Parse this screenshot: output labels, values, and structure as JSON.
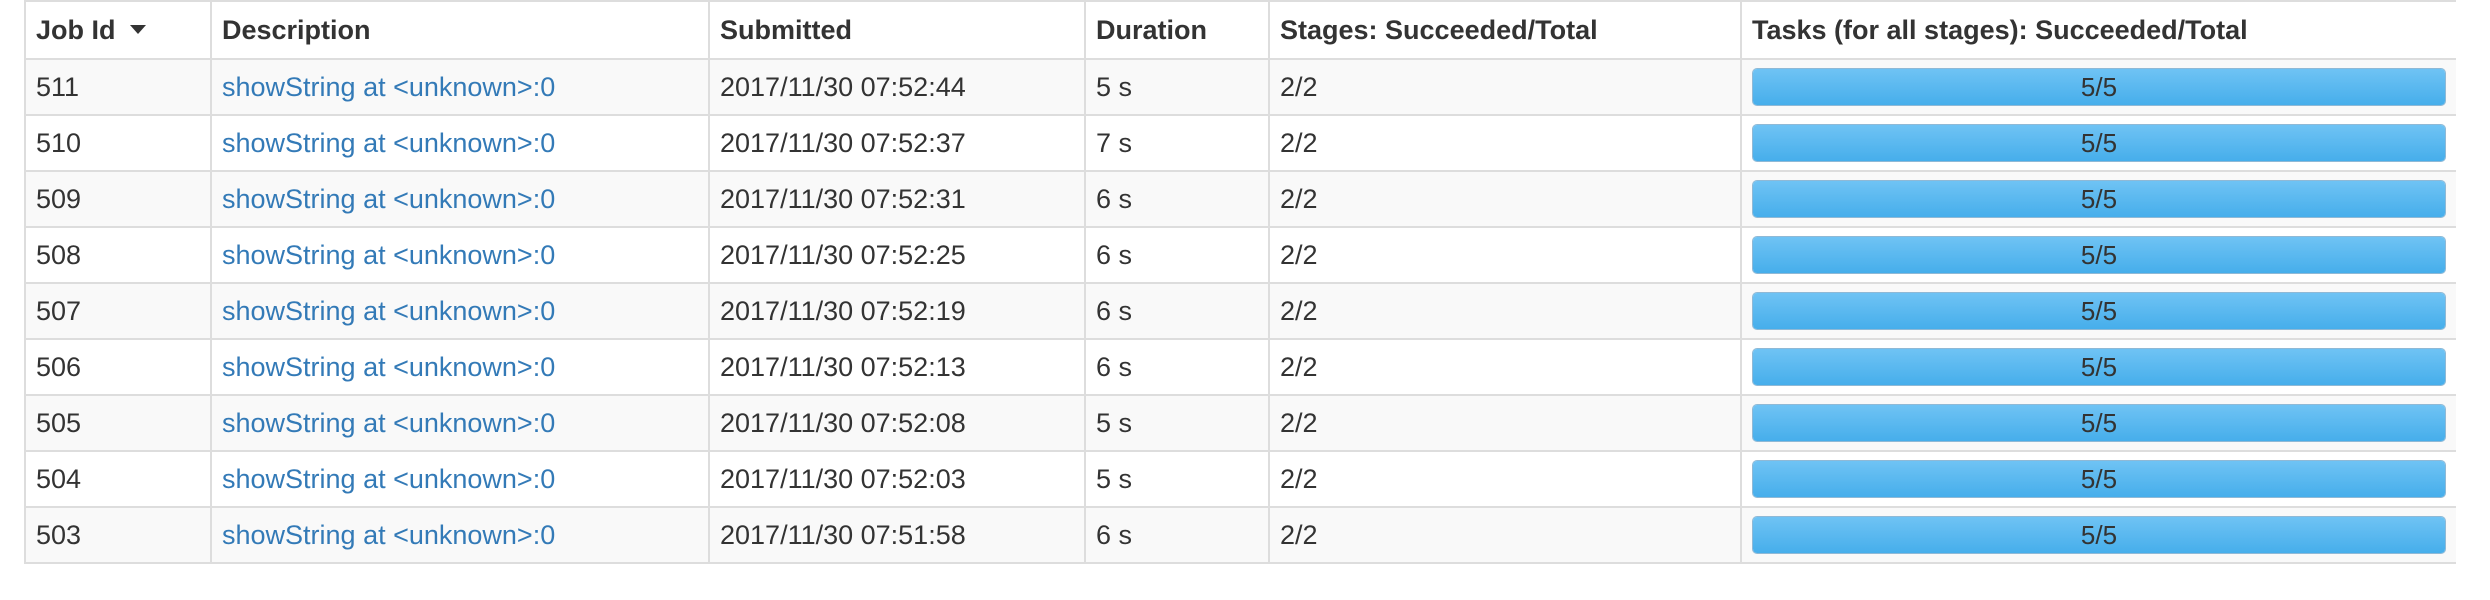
{
  "headers": {
    "job_id": "Job Id",
    "description": "Description",
    "submitted": "Submitted",
    "duration": "Duration",
    "stages": "Stages: Succeeded/Total",
    "tasks": "Tasks (for all stages): Succeeded/Total"
  },
  "sort": {
    "column": "job_id",
    "direction": "descending",
    "icon": "sort-desc-icon"
  },
  "colors": {
    "link": "#337ab7",
    "progress": "#5bb8f0",
    "row_stripe": "#f9f9f9",
    "border": "#dddddd"
  },
  "rows": [
    {
      "job_id": "511",
      "description": "showString at <unknown>:0",
      "submitted": "2017/11/30 07:52:44",
      "duration": "5 s",
      "stages": "2/2",
      "tasks": "5/5",
      "tasks_fraction": 1.0
    },
    {
      "job_id": "510",
      "description": "showString at <unknown>:0",
      "submitted": "2017/11/30 07:52:37",
      "duration": "7 s",
      "stages": "2/2",
      "tasks": "5/5",
      "tasks_fraction": 1.0
    },
    {
      "job_id": "509",
      "description": "showString at <unknown>:0",
      "submitted": "2017/11/30 07:52:31",
      "duration": "6 s",
      "stages": "2/2",
      "tasks": "5/5",
      "tasks_fraction": 1.0
    },
    {
      "job_id": "508",
      "description": "showString at <unknown>:0",
      "submitted": "2017/11/30 07:52:25",
      "duration": "6 s",
      "stages": "2/2",
      "tasks": "5/5",
      "tasks_fraction": 1.0
    },
    {
      "job_id": "507",
      "description": "showString at <unknown>:0",
      "submitted": "2017/11/30 07:52:19",
      "duration": "6 s",
      "stages": "2/2",
      "tasks": "5/5",
      "tasks_fraction": 1.0
    },
    {
      "job_id": "506",
      "description": "showString at <unknown>:0",
      "submitted": "2017/11/30 07:52:13",
      "duration": "6 s",
      "stages": "2/2",
      "tasks": "5/5",
      "tasks_fraction": 1.0
    },
    {
      "job_id": "505",
      "description": "showString at <unknown>:0",
      "submitted": "2017/11/30 07:52:08",
      "duration": "5 s",
      "stages": "2/2",
      "tasks": "5/5",
      "tasks_fraction": 1.0
    },
    {
      "job_id": "504",
      "description": "showString at <unknown>:0",
      "submitted": "2017/11/30 07:52:03",
      "duration": "5 s",
      "stages": "2/2",
      "tasks": "5/5",
      "tasks_fraction": 1.0
    },
    {
      "job_id": "503",
      "description": "showString at <unknown>:0",
      "submitted": "2017/11/30 07:51:58",
      "duration": "6 s",
      "stages": "2/2",
      "tasks": "5/5",
      "tasks_fraction": 1.0
    }
  ]
}
